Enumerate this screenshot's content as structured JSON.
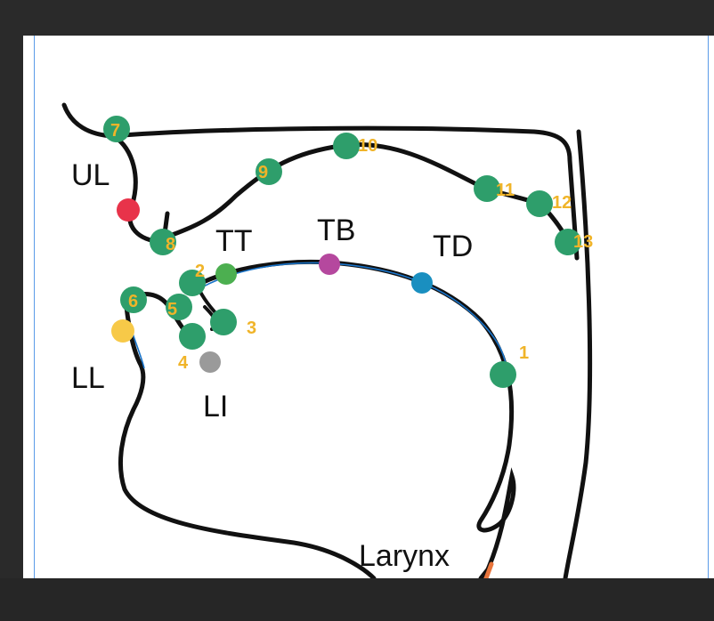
{
  "colors": {
    "outline": "#111111",
    "sensor_green": "#2e9e6b",
    "number_yellow": "#f0b429",
    "guide_blue": "#5b9be8",
    "UL": "#e8334a",
    "LL": "#f7c948",
    "LI": "#9a9a9a",
    "TT": "#4caf50",
    "TB": "#b5489e",
    "TD": "#1a8fc0",
    "Larynx": "#e8743b"
  },
  "region_labels": {
    "UL": "UL",
    "LL": "LL",
    "LI": "LI",
    "TT": "TT",
    "TB": "TB",
    "TD": "TD",
    "Larynx": "Larynx"
  },
  "numbered_points": [
    "1",
    "2",
    "3",
    "4",
    "5",
    "6",
    "7",
    "8",
    "9",
    "10",
    "11",
    "12",
    "13"
  ]
}
